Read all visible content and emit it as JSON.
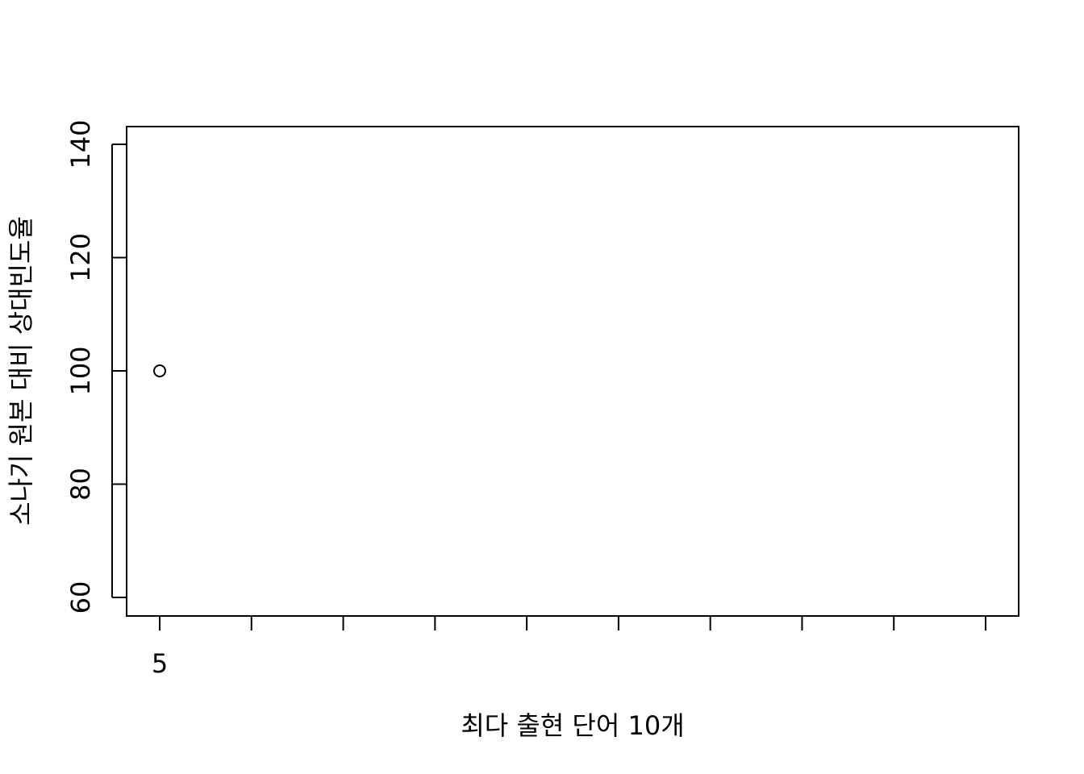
{
  "chart_data": {
    "type": "scatter",
    "title": "",
    "xlabel": "최다 출현 단어 10개",
    "ylabel": "소나기 원본 대비 상대빈도율",
    "x": [
      1
    ],
    "values": [
      100
    ],
    "xlim": [
      1,
      10
    ],
    "ylim": [
      60,
      140
    ],
    "x_tick_count": 10,
    "x_tick_labels": [
      "5",
      "",
      "",
      "",
      "",
      "",
      "",
      "",
      "",
      ""
    ],
    "y_ticks": [
      60,
      80,
      100,
      120,
      140
    ],
    "grid": false,
    "marker": "open-circle",
    "colors": {
      "axis": "#000000",
      "point": "#000000",
      "background": "#ffffff"
    }
  }
}
